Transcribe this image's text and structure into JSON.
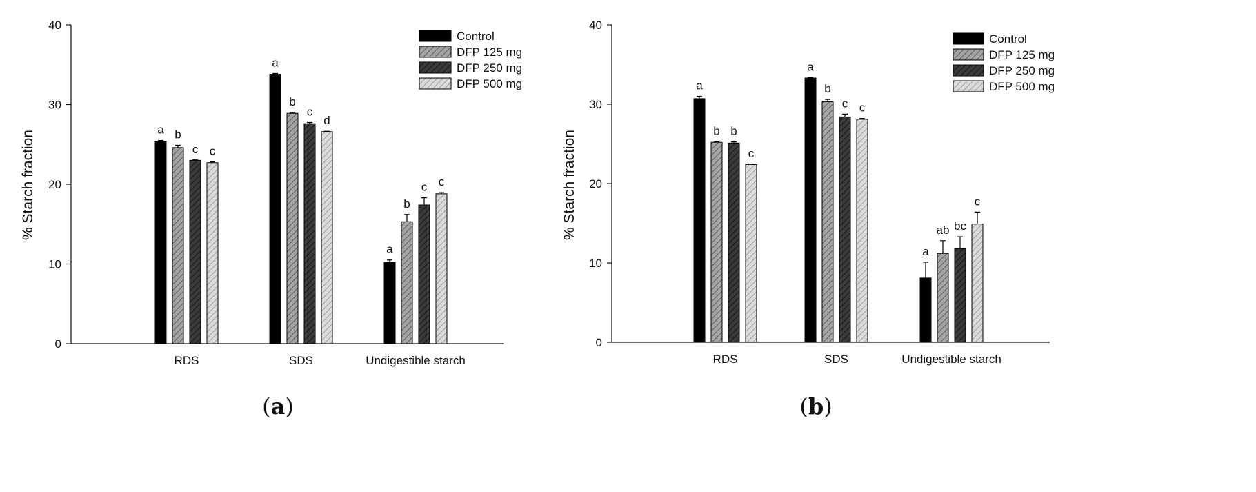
{
  "chart_data": [
    {
      "type": "bar",
      "panel": "(a)",
      "panel_letter": "a",
      "ylabel": "% Starch fraction",
      "xlabel": "",
      "ylim": [
        0,
        40
      ],
      "yticks": [
        0,
        10,
        20,
        30,
        40
      ],
      "categories": [
        "RDS",
        "SDS",
        "Undigestible starch"
      ],
      "legend_position": "top-right",
      "series": [
        {
          "name": "Control",
          "values": [
            25.4,
            33.8,
            10.2
          ],
          "errors": [
            0.1,
            0.1,
            0.3
          ],
          "letters": [
            "a",
            "a",
            "a"
          ]
        },
        {
          "name": "DFP 125 mg",
          "values": [
            24.6,
            28.9,
            15.3
          ],
          "errors": [
            0.3,
            0.1,
            0.9
          ],
          "letters": [
            "b",
            "b",
            "b"
          ]
        },
        {
          "name": "DFP 250 mg",
          "values": [
            23.0,
            27.6,
            17.4
          ],
          "errors": [
            0.05,
            0.15,
            0.9
          ],
          "letters": [
            "c",
            "c",
            "c"
          ]
        },
        {
          "name": "DFP 500 mg",
          "values": [
            22.7,
            26.6,
            18.8
          ],
          "errors": [
            0.1,
            0.05,
            0.15
          ],
          "letters": [
            "c",
            "d",
            "c"
          ]
        }
      ]
    },
    {
      "type": "bar",
      "panel": "(b)",
      "panel_letter": "b",
      "ylabel": "% Starch fraction",
      "xlabel": "",
      "ylim": [
        0,
        40
      ],
      "yticks": [
        0,
        10,
        20,
        30,
        40
      ],
      "categories": [
        "RDS",
        "SDS",
        "Undigestible starch"
      ],
      "legend_position": "top-right",
      "series": [
        {
          "name": "Control",
          "values": [
            30.7,
            33.3,
            8.1
          ],
          "errors": [
            0.3,
            0.05,
            2.0
          ],
          "letters": [
            "a",
            "a",
            "a"
          ]
        },
        {
          "name": "DFP 125 mg",
          "values": [
            25.2,
            30.3,
            11.2
          ],
          "errors": [
            0.05,
            0.3,
            1.6
          ],
          "letters": [
            "b",
            "b",
            "ab"
          ]
        },
        {
          "name": "DFP 250 mg",
          "values": [
            25.1,
            28.4,
            11.8
          ],
          "errors": [
            0.15,
            0.35,
            1.5
          ],
          "letters": [
            "b",
            "c",
            "bc"
          ]
        },
        {
          "name": "DFP 500 mg",
          "values": [
            22.4,
            28.1,
            14.9
          ],
          "errors": [
            0.05,
            0.1,
            1.5
          ],
          "letters": [
            "c",
            "c",
            "c"
          ]
        }
      ]
    }
  ],
  "colors": {
    "control": "#000000",
    "dfp125_fill": "#9a9a9a",
    "dfp250_fill": "#3c3c3c",
    "dfp500_fill": "#d0d0d0",
    "axis": "#111111"
  }
}
